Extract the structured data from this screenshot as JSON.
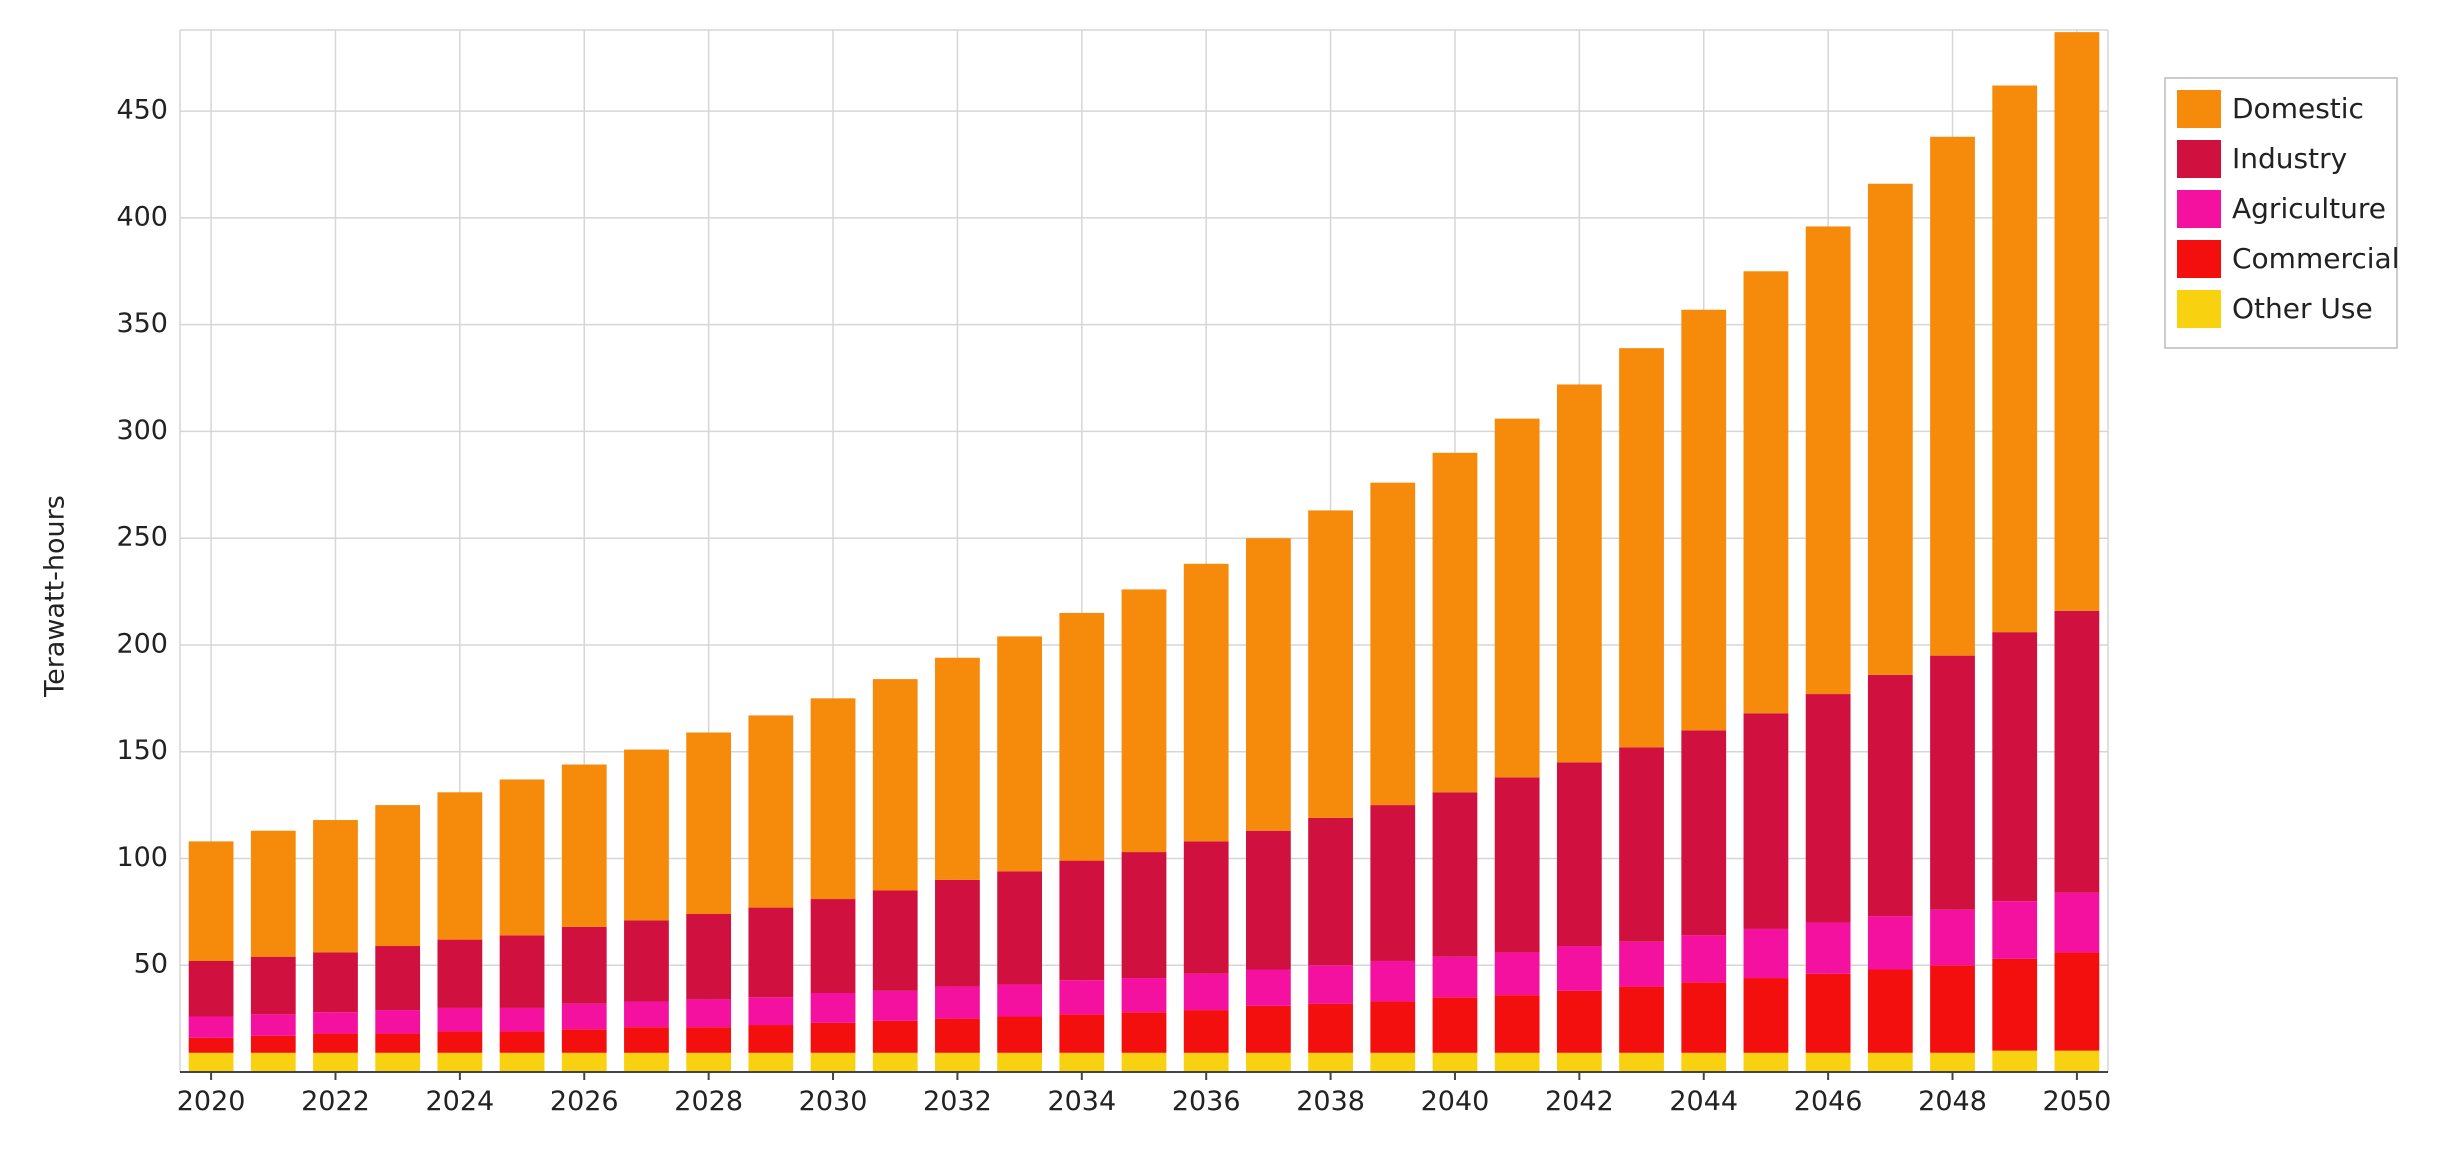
{
  "chart_data": {
    "type": "bar",
    "stacked": true,
    "title": "",
    "xlabel": "",
    "ylabel": "Terawatt-hours",
    "ylim": [
      0,
      488
    ],
    "yticks": [
      50,
      100,
      150,
      200,
      250,
      300,
      350,
      400,
      450
    ],
    "xticks": [
      "2020",
      "2022",
      "2024",
      "2026",
      "2028",
      "2030",
      "2032",
      "2034",
      "2036",
      "2038",
      "2040",
      "2042",
      "2044",
      "2046",
      "2048",
      "2050"
    ],
    "grid": true,
    "legend_position": "top-right",
    "categories": [
      "2020",
      "2021",
      "2022",
      "2023",
      "2024",
      "2025",
      "2026",
      "2027",
      "2028",
      "2029",
      "2030",
      "2031",
      "2032",
      "2033",
      "2034",
      "2035",
      "2036",
      "2037",
      "2038",
      "2039",
      "2040",
      "2041",
      "2042",
      "2043",
      "2044",
      "2045",
      "2046",
      "2047",
      "2048",
      "2049",
      "2050"
    ],
    "series": [
      {
        "name": "Other Use",
        "color": "#f8d210",
        "values": [
          9,
          9,
          9,
          9,
          9,
          9,
          9,
          9,
          9,
          9,
          9,
          9,
          9,
          9,
          9,
          9,
          9,
          9,
          9,
          9,
          9,
          9,
          9,
          9,
          9,
          9,
          9,
          9,
          9,
          10,
          10
        ]
      },
      {
        "name": "Commercial",
        "color": "#f40f0f",
        "values": [
          7,
          8,
          9,
          9,
          10,
          10,
          11,
          12,
          12,
          13,
          14,
          15,
          16,
          17,
          18,
          19,
          20,
          22,
          23,
          24,
          26,
          27,
          29,
          31,
          33,
          35,
          37,
          39,
          41,
          43,
          46
        ]
      },
      {
        "name": "Agriculture",
        "color": "#f511a0",
        "values": [
          10,
          10,
          10,
          11,
          11,
          11,
          12,
          12,
          13,
          13,
          14,
          14,
          15,
          15,
          16,
          16,
          17,
          17,
          18,
          19,
          19,
          20,
          21,
          21,
          22,
          23,
          24,
          25,
          26,
          27,
          28
        ]
      },
      {
        "name": "Industry",
        "color": "#d01140",
        "values": [
          26,
          27,
          28,
          30,
          32,
          34,
          36,
          38,
          40,
          42,
          44,
          47,
          50,
          53,
          56,
          59,
          62,
          65,
          69,
          73,
          77,
          82,
          86,
          91,
          96,
          101,
          107,
          113,
          119,
          126,
          132
        ]
      },
      {
        "name": "Domestic",
        "color": "#f58a0b",
        "values": [
          56,
          59,
          62,
          66,
          69,
          73,
          76,
          80,
          85,
          90,
          94,
          99,
          104,
          110,
          116,
          123,
          130,
          137,
          144,
          151,
          159,
          168,
          177,
          187,
          197,
          207,
          219,
          230,
          243,
          256,
          271
        ]
      }
    ]
  }
}
